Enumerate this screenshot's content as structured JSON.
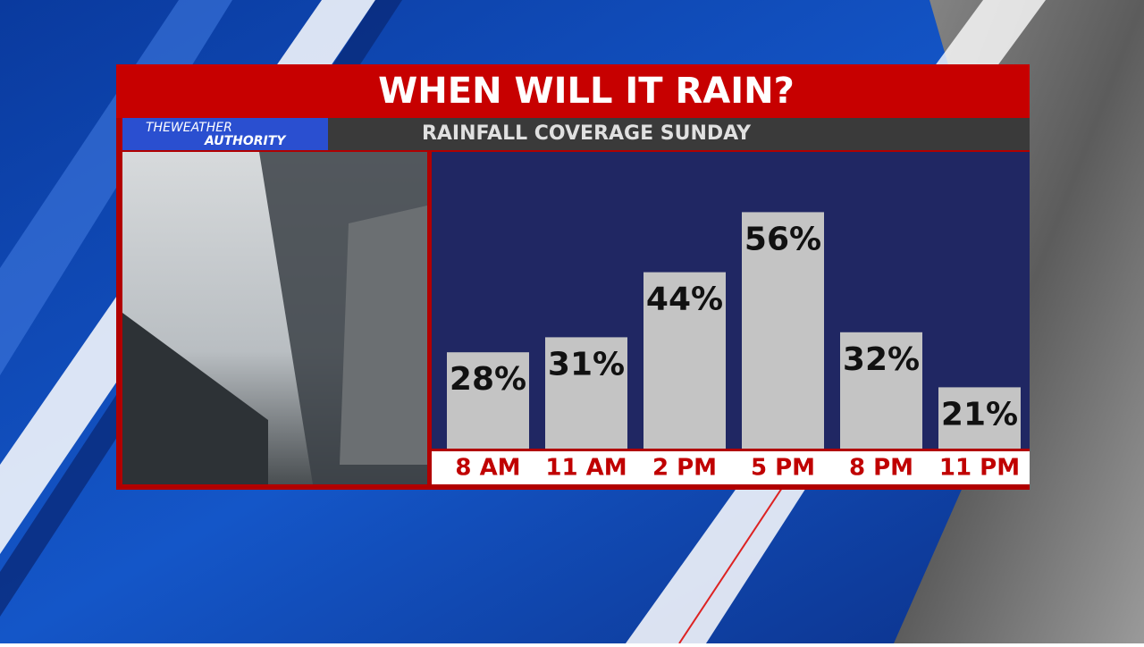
{
  "title": "WHEN WILL IT RAIN?",
  "logo": [
    "THEWEATHER",
    "AUTHORITY"
  ],
  "chart_data": {
    "type": "bar",
    "title": "RAINFALL COVERAGE SUNDAY",
    "categories": [
      "8 AM",
      "11 AM",
      "2 PM",
      "5 PM",
      "8 PM",
      "11 PM"
    ],
    "values": [
      28,
      31,
      44,
      56,
      32,
      21
    ],
    "value_labels": [
      "28%",
      "31%",
      "44%",
      "56%",
      "32%",
      "21%"
    ],
    "color": "#c4c4c4"
  }
}
